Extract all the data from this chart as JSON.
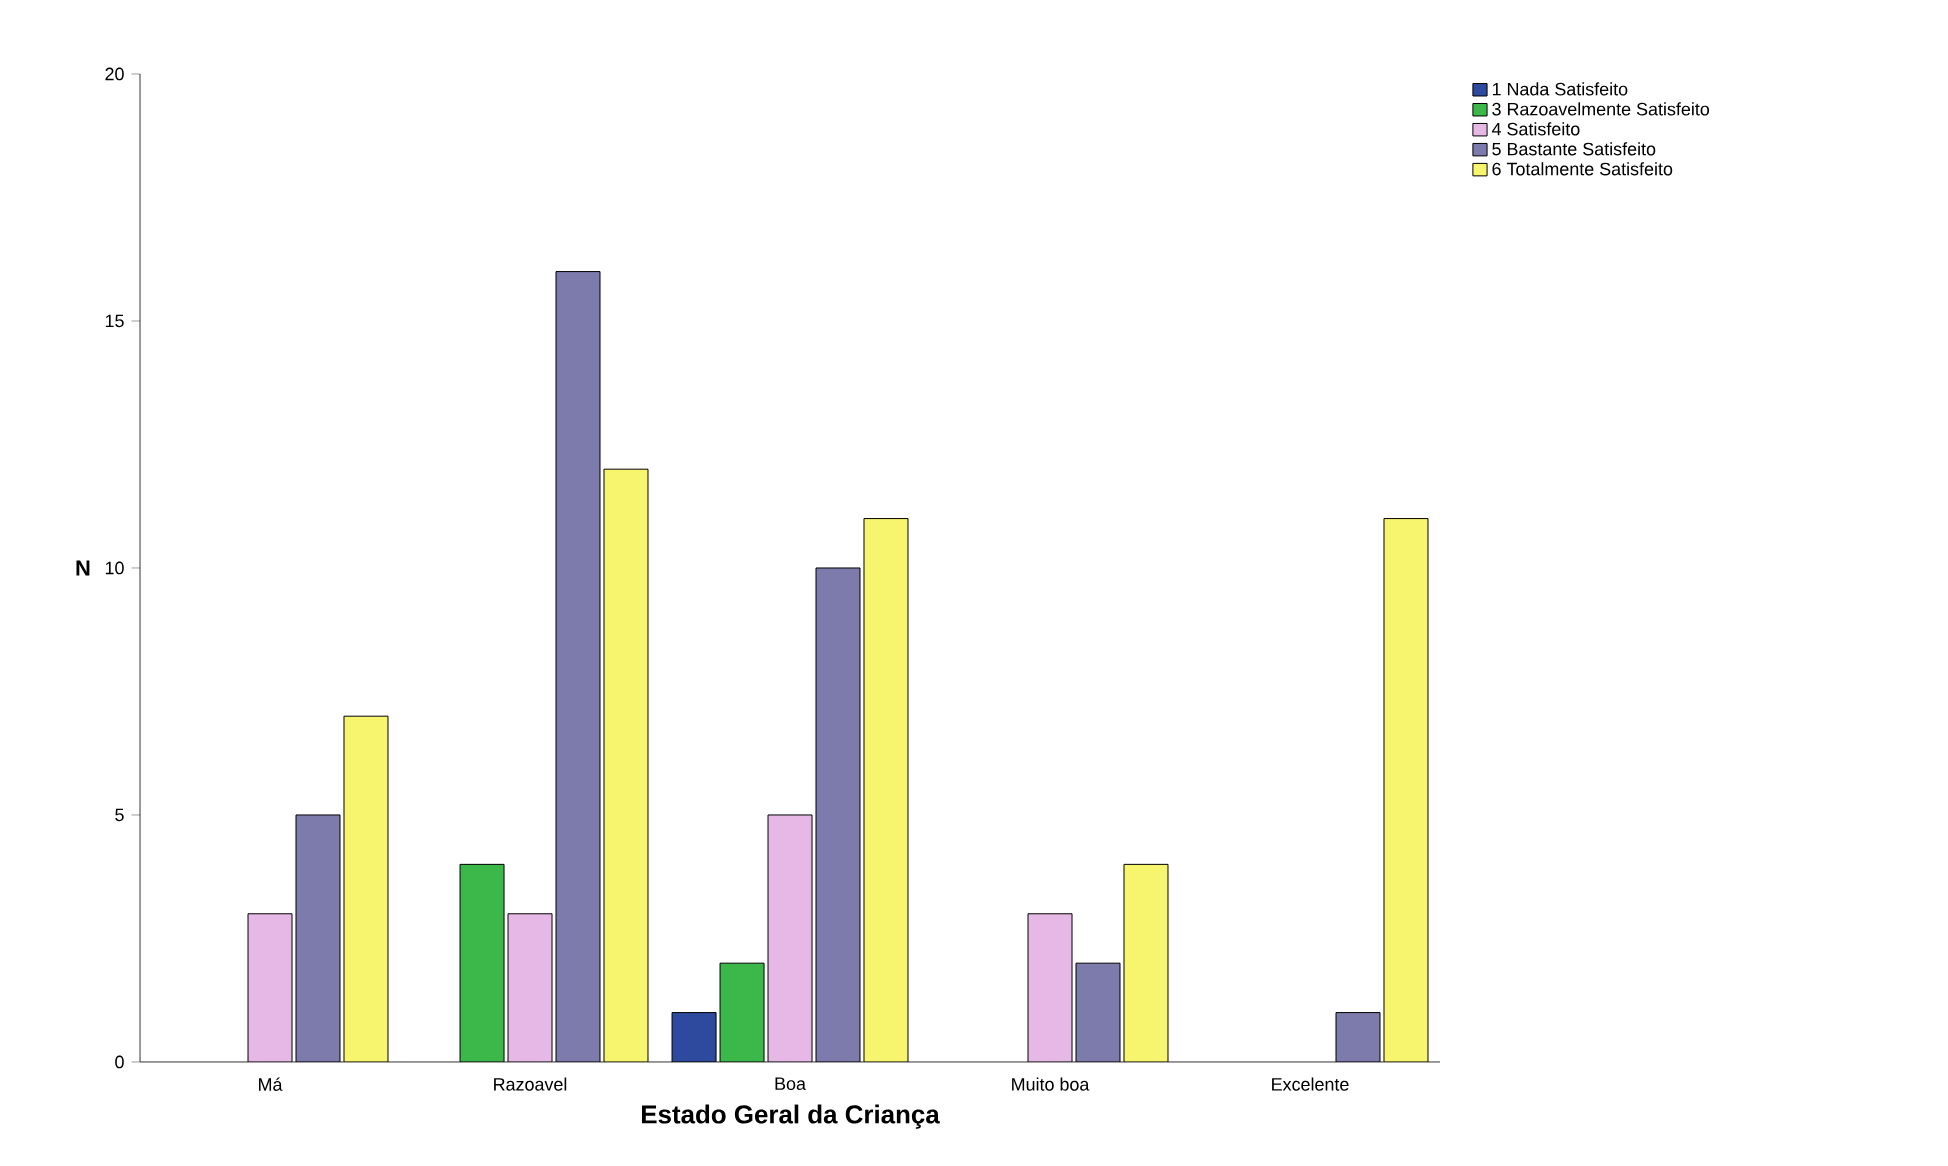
{
  "chart_data": {
    "type": "bar",
    "xlabel": "Estado Geral da Criança",
    "ylabel": "N",
    "categories": [
      "Má",
      "Razoavel",
      "Boa",
      "Muito boa",
      "Excelente"
    ],
    "series": [
      {
        "name": "1 Nada Satisfeito",
        "color": "#2e4a9e",
        "values": [
          null,
          null,
          1,
          null,
          null
        ]
      },
      {
        "name": "3 Razoavelmente Satisfeito",
        "color": "#3cb84a",
        "values": [
          null,
          4,
          2,
          null,
          null
        ]
      },
      {
        "name": "4 Satisfeito",
        "color": "#e6b8e6",
        "values": [
          3,
          3,
          5,
          3,
          null
        ]
      },
      {
        "name": "5 Bastante Satisfeito",
        "color": "#7c7bab",
        "values": [
          5,
          16,
          10,
          2,
          1
        ]
      },
      {
        "name": "6 Totalmente Satisfeito",
        "color": "#f7f56e",
        "values": [
          7,
          12,
          11,
          4,
          11
        ]
      }
    ],
    "ylim": [
      0,
      20
    ],
    "yticks": [
      0,
      5,
      10,
      15,
      20
    ],
    "grid": false,
    "legend": "top right"
  }
}
